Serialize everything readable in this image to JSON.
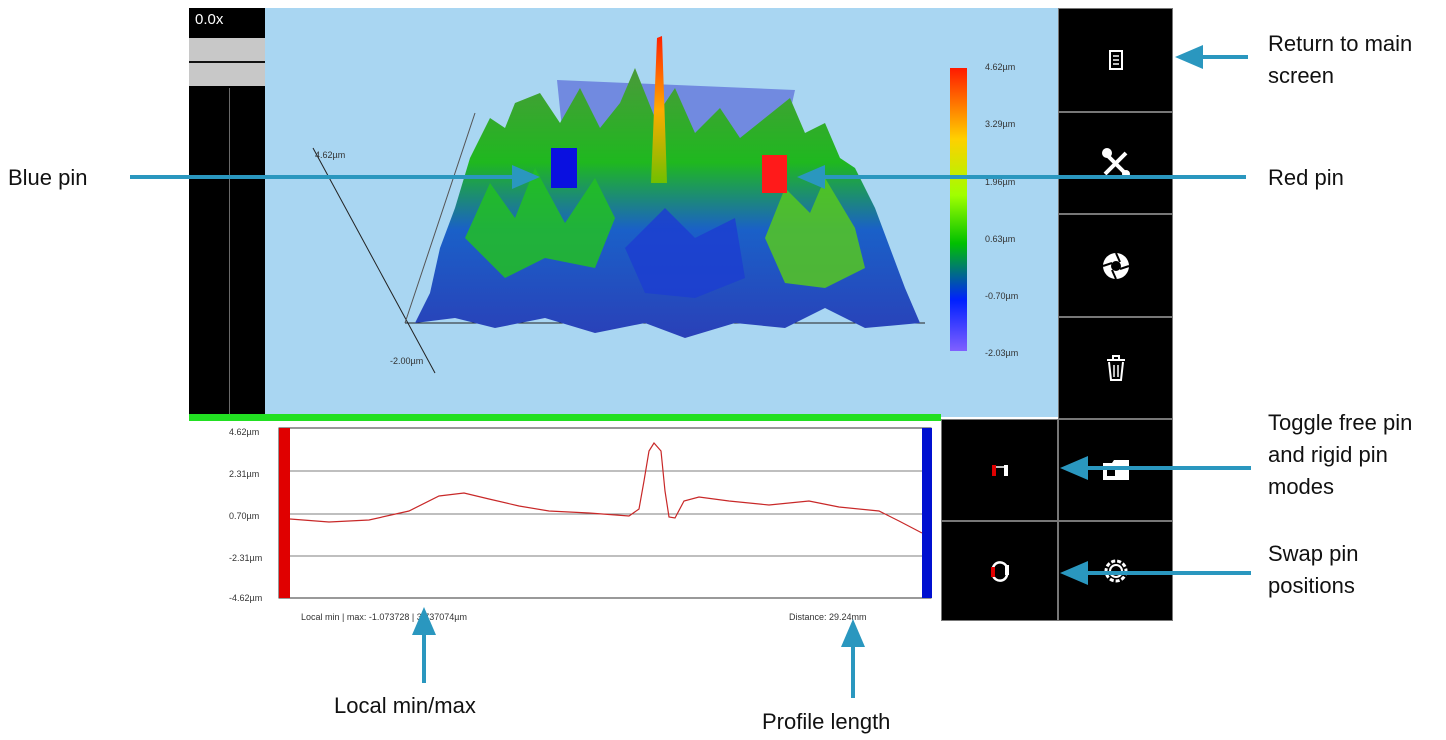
{
  "left_panel": {
    "zoom": "0.0x"
  },
  "view3d": {
    "axis_label_left": "4.62µm",
    "axis_label_bottom_left": "-2.00µm",
    "colorbar": {
      "labels": [
        "4.62µm",
        "3.29µm",
        "1.96µm",
        "0.63µm",
        "-0.70µm",
        "-2.03µm"
      ],
      "colors": [
        "#ff1a00",
        "#ffd000",
        "#a0ff00",
        "#00c000",
        "#0020ff",
        "#8060ff"
      ]
    }
  },
  "toolbar": {
    "buttons": [
      {
        "icon": "document-icon"
      },
      {
        "icon": "tools-icon"
      },
      {
        "icon": "aperture-icon"
      },
      {
        "icon": "trash-icon"
      },
      {
        "icon": "pin-mode-icon"
      },
      {
        "icon": "folder-icon"
      },
      {
        "icon": "swap-icon"
      },
      {
        "icon": "gear-icon"
      }
    ]
  },
  "profile": {
    "y_labels": [
      "4.62µm",
      "2.31µm",
      "0.70µm",
      "-2.31µm",
      "-4.62µm"
    ],
    "local_min_max": "Local min | max:  -1.073728 | 3.737074µm",
    "distance": "Distance: 29.24mm",
    "line_color": "#c82828",
    "left_pin_color": "#e00000",
    "right_pin_color": "#0010d0"
  },
  "callouts": {
    "return_main": "Return to main screen",
    "blue_pin": "Blue pin",
    "red_pin": "Red pin",
    "toggle_pin": "Toggle free pin and rigid pin modes",
    "swap_pin": "Swap   pin positions",
    "local_minmax": "Local min/max",
    "profile_length": "Profile length",
    "arrow_color": "#2a97bf"
  }
}
